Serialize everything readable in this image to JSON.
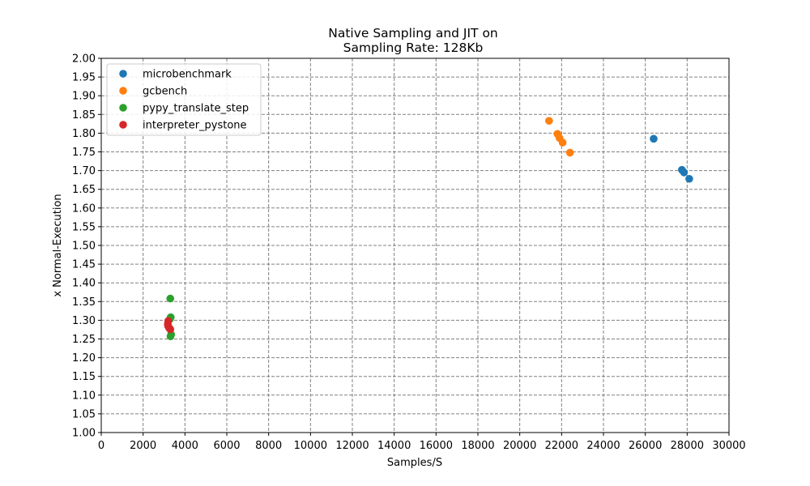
{
  "chart_data": {
    "type": "scatter",
    "title_line1": "Native Sampling and JIT on",
    "title_line2": "Sampling Rate: 128Kb",
    "xlabel": "Samples/S",
    "ylabel": "x Normal-Execution",
    "xlim": [
      0,
      30000
    ],
    "ylim": [
      1.0,
      2.0
    ],
    "xticks": [
      "0",
      "2000",
      "4000",
      "6000",
      "8000",
      "10000",
      "12000",
      "14000",
      "16000",
      "18000",
      "20000",
      "22000",
      "24000",
      "26000",
      "28000",
      "30000"
    ],
    "yticks": [
      "1.00",
      "1.05",
      "1.10",
      "1.15",
      "1.20",
      "1.25",
      "1.30",
      "1.35",
      "1.40",
      "1.45",
      "1.50",
      "1.55",
      "1.60",
      "1.65",
      "1.70",
      "1.75",
      "1.80",
      "1.85",
      "1.90",
      "1.95",
      "2.00"
    ],
    "grid": true,
    "legend_position": "top-left",
    "series": [
      {
        "name": "microbenchmark",
        "color": "#1f77b4",
        "points": [
          [
            26400,
            1.785
          ],
          [
            27750,
            1.702
          ],
          [
            27850,
            1.695
          ],
          [
            28100,
            1.678
          ]
        ]
      },
      {
        "name": "gcbench",
        "color": "#ff7f0e",
        "points": [
          [
            21400,
            1.833
          ],
          [
            21800,
            1.798
          ],
          [
            21900,
            1.787
          ],
          [
            22050,
            1.775
          ],
          [
            22400,
            1.748
          ]
        ]
      },
      {
        "name": "pypy_translate_step",
        "color": "#2ca02c",
        "points": [
          [
            3300,
            1.358
          ],
          [
            3320,
            1.308
          ],
          [
            3280,
            1.303
          ],
          [
            3340,
            1.262
          ],
          [
            3310,
            1.257
          ]
        ]
      },
      {
        "name": "interpreter_pystone",
        "color": "#d62728",
        "points": [
          [
            3200,
            1.298
          ],
          [
            3180,
            1.29
          ],
          [
            3200,
            1.284
          ],
          [
            3250,
            1.279
          ],
          [
            3300,
            1.276
          ]
        ]
      }
    ]
  }
}
